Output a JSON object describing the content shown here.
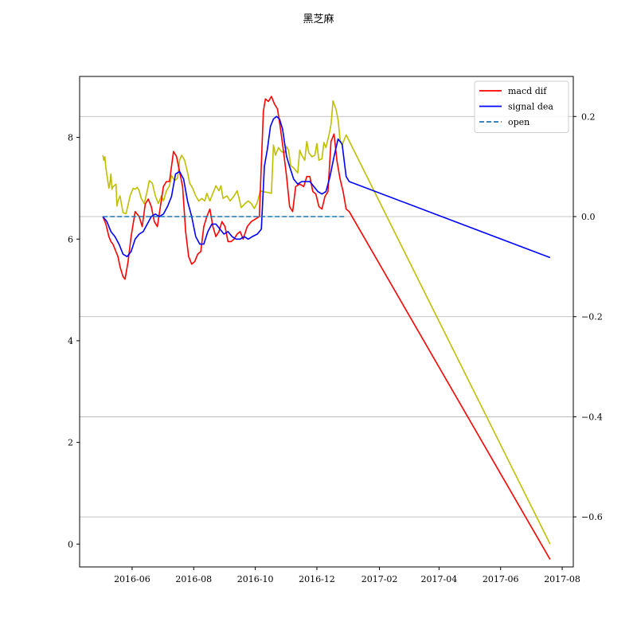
{
  "chart_data": {
    "type": "line",
    "title": "黑芝麻",
    "xlabel": "",
    "ylabel_left": "",
    "ylabel_right": "",
    "x_axis": {
      "type": "date",
      "range": [
        "2016-04-10",
        "2017-08-12"
      ],
      "ticks": [
        "2016-06",
        "2016-08",
        "2016-10",
        "2016-12",
        "2017-02",
        "2017-04",
        "2017-06",
        "2017-08"
      ],
      "tick_dates": [
        "2016-06-01",
        "2016-08-01",
        "2016-10-01",
        "2016-12-01",
        "2017-02-01",
        "2017-04-01",
        "2017-06-01",
        "2017-08-01"
      ]
    },
    "y_left": {
      "range": [
        -0.45,
        9.2
      ],
      "ticks": [
        0,
        2,
        4,
        6,
        8
      ]
    },
    "y_right": {
      "range": [
        -0.7,
        0.28
      ],
      "ticks": [
        0.2,
        0.0,
        -0.2,
        -0.4,
        -0.6
      ],
      "tick_labels": [
        "0.2",
        "0.0",
        "−0.2",
        "−0.4",
        "−0.6"
      ],
      "grid": true
    },
    "legend": {
      "position": "upper right",
      "entries": [
        {
          "label": "macd dif",
          "color": "#ff0000",
          "style": "solid"
        },
        {
          "label": "signal dea",
          "color": "#0000ff",
          "style": "solid"
        },
        {
          "label": "open",
          "color": "#1f77b4",
          "style": "dashed"
        }
      ]
    },
    "series": [
      {
        "name": "",
        "axis": "left",
        "color": "#bfbf00",
        "points": [
          [
            "2016-05-03",
            7.65
          ],
          [
            "2016-05-04",
            7.55
          ],
          [
            "2016-05-05",
            7.62
          ],
          [
            "2016-05-06",
            7.4
          ],
          [
            "2016-05-09",
            7.0
          ],
          [
            "2016-05-10",
            7.1
          ],
          [
            "2016-05-11",
            7.28
          ],
          [
            "2016-05-12",
            6.98
          ],
          [
            "2016-05-13",
            7.03
          ],
          [
            "2016-05-16",
            7.08
          ],
          [
            "2016-05-17",
            6.65
          ],
          [
            "2016-05-18",
            6.75
          ],
          [
            "2016-05-19",
            6.8
          ],
          [
            "2016-05-20",
            6.85
          ],
          [
            "2016-05-23",
            6.52
          ],
          [
            "2016-05-26",
            6.5
          ],
          [
            "2016-05-30",
            6.85
          ],
          [
            "2016-06-02",
            7.0
          ],
          [
            "2016-06-04",
            6.98
          ],
          [
            "2016-06-06",
            7.02
          ],
          [
            "2016-06-08",
            6.95
          ],
          [
            "2016-06-10",
            6.8
          ],
          [
            "2016-06-13",
            6.7
          ],
          [
            "2016-06-16",
            6.95
          ],
          [
            "2016-06-18",
            7.15
          ],
          [
            "2016-06-21",
            7.1
          ],
          [
            "2016-06-24",
            6.85
          ],
          [
            "2016-06-27",
            6.7
          ],
          [
            "2016-06-30",
            6.85
          ],
          [
            "2016-07-02",
            6.75
          ],
          [
            "2016-07-05",
            6.95
          ],
          [
            "2016-07-08",
            7.05
          ],
          [
            "2016-07-10",
            7.25
          ],
          [
            "2016-07-13",
            7.15
          ],
          [
            "2016-07-16",
            7.2
          ],
          [
            "2016-07-18",
            7.55
          ],
          [
            "2016-07-20",
            7.65
          ],
          [
            "2016-07-23",
            7.55
          ],
          [
            "2016-07-26",
            7.3
          ],
          [
            "2016-07-28",
            7.1
          ],
          [
            "2016-07-31",
            7.0
          ],
          [
            "2016-08-03",
            6.85
          ],
          [
            "2016-08-06",
            6.75
          ],
          [
            "2016-08-09",
            6.8
          ],
          [
            "2016-08-12",
            6.75
          ],
          [
            "2016-08-14",
            6.9
          ],
          [
            "2016-08-17",
            6.75
          ],
          [
            "2016-08-20",
            6.9
          ],
          [
            "2016-08-23",
            7.05
          ],
          [
            "2016-08-26",
            6.95
          ],
          [
            "2016-08-28",
            7.05
          ],
          [
            "2016-08-30",
            6.8
          ],
          [
            "2016-09-03",
            6.85
          ],
          [
            "2016-09-06",
            6.75
          ],
          [
            "2016-09-10",
            6.85
          ],
          [
            "2016-09-13",
            6.95
          ],
          [
            "2016-09-15",
            6.8
          ],
          [
            "2016-09-17",
            6.62
          ],
          [
            "2016-09-21",
            6.7
          ],
          [
            "2016-09-24",
            6.75
          ],
          [
            "2016-09-27",
            6.7
          ],
          [
            "2016-09-30",
            6.6
          ],
          [
            "2016-10-03",
            6.72
          ],
          [
            "2016-10-06",
            6.95
          ],
          [
            "2016-10-09",
            6.93
          ],
          [
            "2016-10-13",
            6.92
          ],
          [
            "2016-10-17",
            6.9
          ],
          [
            "2016-10-19",
            7.85
          ],
          [
            "2016-10-21",
            7.65
          ],
          [
            "2016-10-24",
            7.8
          ],
          [
            "2016-10-27",
            7.72
          ],
          [
            "2016-10-30",
            7.7
          ],
          [
            "2016-11-01",
            7.82
          ],
          [
            "2016-11-03",
            7.75
          ],
          [
            "2016-11-05",
            7.45
          ],
          [
            "2016-11-08",
            7.4
          ],
          [
            "2016-11-10",
            7.35
          ],
          [
            "2016-11-12",
            7.3
          ],
          [
            "2016-11-14",
            7.75
          ],
          [
            "2016-11-16",
            7.65
          ],
          [
            "2016-11-19",
            7.55
          ],
          [
            "2016-11-21",
            7.92
          ],
          [
            "2016-11-23",
            7.7
          ],
          [
            "2016-11-26",
            7.62
          ],
          [
            "2016-11-29",
            7.65
          ],
          [
            "2016-12-01",
            7.88
          ],
          [
            "2016-12-03",
            7.55
          ],
          [
            "2016-12-06",
            7.58
          ],
          [
            "2016-12-08",
            7.9
          ],
          [
            "2016-12-10",
            7.8
          ],
          [
            "2016-12-13",
            8.05
          ],
          [
            "2016-12-15",
            8.25
          ],
          [
            "2016-12-17",
            8.72
          ],
          [
            "2016-12-20",
            8.55
          ],
          [
            "2016-12-22",
            8.35
          ],
          [
            "2016-12-24",
            7.95
          ],
          [
            "2016-12-26",
            7.85
          ],
          [
            "2016-12-28",
            7.95
          ],
          [
            "2016-12-30",
            8.05
          ],
          [
            "2017-07-20",
            0.0
          ]
        ]
      },
      {
        "name": "macd dif",
        "axis": "right",
        "color": "#ff0000",
        "points": [
          [
            "2016-05-03",
            0.0
          ],
          [
            "2016-05-06",
            -0.015
          ],
          [
            "2016-05-09",
            -0.04
          ],
          [
            "2016-05-11",
            -0.05
          ],
          [
            "2016-05-13",
            -0.055
          ],
          [
            "2016-05-16",
            -0.07
          ],
          [
            "2016-05-18",
            -0.08
          ],
          [
            "2016-05-20",
            -0.1
          ],
          [
            "2016-05-23",
            -0.12
          ],
          [
            "2016-05-25",
            -0.125
          ],
          [
            "2016-05-28",
            -0.09
          ],
          [
            "2016-05-31",
            -0.04
          ],
          [
            "2016-06-04",
            0.01
          ],
          [
            "2016-06-08",
            0.0
          ],
          [
            "2016-06-11",
            -0.02
          ],
          [
            "2016-06-14",
            0.025
          ],
          [
            "2016-06-17",
            0.035
          ],
          [
            "2016-06-20",
            0.02
          ],
          [
            "2016-06-23",
            -0.01
          ],
          [
            "2016-06-26",
            -0.02
          ],
          [
            "2016-06-29",
            0.02
          ],
          [
            "2016-07-02",
            0.06
          ],
          [
            "2016-07-05",
            0.07
          ],
          [
            "2016-07-08",
            0.07
          ],
          [
            "2016-07-12",
            0.13
          ],
          [
            "2016-07-15",
            0.12
          ],
          [
            "2016-07-18",
            0.09
          ],
          [
            "2016-07-21",
            0.06
          ],
          [
            "2016-07-24",
            -0.03
          ],
          [
            "2016-07-27",
            -0.08
          ],
          [
            "2016-07-30",
            -0.095
          ],
          [
            "2016-08-02",
            -0.09
          ],
          [
            "2016-08-05",
            -0.075
          ],
          [
            "2016-08-08",
            -0.07
          ],
          [
            "2016-08-11",
            -0.02
          ],
          [
            "2016-08-14",
            0.0
          ],
          [
            "2016-08-17",
            0.015
          ],
          [
            "2016-08-20",
            -0.02
          ],
          [
            "2016-08-23",
            -0.04
          ],
          [
            "2016-08-26",
            -0.03
          ],
          [
            "2016-08-29",
            -0.01
          ],
          [
            "2016-09-01",
            -0.02
          ],
          [
            "2016-09-04",
            -0.05
          ],
          [
            "2016-09-07",
            -0.05
          ],
          [
            "2016-09-10",
            -0.045
          ],
          [
            "2016-09-13",
            -0.035
          ],
          [
            "2016-09-16",
            -0.03
          ],
          [
            "2016-09-19",
            -0.045
          ],
          [
            "2016-09-23",
            -0.02
          ],
          [
            "2016-09-27",
            -0.01
          ],
          [
            "2016-10-01",
            -0.005
          ],
          [
            "2016-10-05",
            0.0
          ],
          [
            "2016-10-09",
            0.21
          ],
          [
            "2016-10-11",
            0.235
          ],
          [
            "2016-10-14",
            0.23
          ],
          [
            "2016-10-17",
            0.24
          ],
          [
            "2016-10-20",
            0.225
          ],
          [
            "2016-10-23",
            0.215
          ],
          [
            "2016-10-26",
            0.175
          ],
          [
            "2016-10-29",
            0.13
          ],
          [
            "2016-11-01",
            0.08
          ],
          [
            "2016-11-04",
            0.02
          ],
          [
            "2016-11-07",
            0.01
          ],
          [
            "2016-11-10",
            0.06
          ],
          [
            "2016-11-14",
            0.065
          ],
          [
            "2016-11-18",
            0.06
          ],
          [
            "2016-11-21",
            0.08
          ],
          [
            "2016-11-24",
            0.08
          ],
          [
            "2016-11-27",
            0.05
          ],
          [
            "2016-11-30",
            0.045
          ],
          [
            "2016-12-03",
            0.02
          ],
          [
            "2016-12-06",
            0.015
          ],
          [
            "2016-12-09",
            0.04
          ],
          [
            "2016-12-12",
            0.05
          ],
          [
            "2016-12-15",
            0.15
          ],
          [
            "2016-12-18",
            0.165
          ],
          [
            "2016-12-21",
            0.11
          ],
          [
            "2016-12-24",
            0.075
          ],
          [
            "2016-12-27",
            0.05
          ],
          [
            "2016-12-30",
            0.015
          ],
          [
            "2017-01-02",
            0.01
          ],
          [
            "2017-07-20",
            -0.685
          ]
        ]
      },
      {
        "name": "signal dea",
        "axis": "right",
        "color": "#0000ff",
        "points": [
          [
            "2016-05-03",
            0.0
          ],
          [
            "2016-05-07",
            -0.01
          ],
          [
            "2016-05-11",
            -0.03
          ],
          [
            "2016-05-15",
            -0.04
          ],
          [
            "2016-05-19",
            -0.055
          ],
          [
            "2016-05-23",
            -0.075
          ],
          [
            "2016-05-27",
            -0.08
          ],
          [
            "2016-05-31",
            -0.07
          ],
          [
            "2016-06-04",
            -0.045
          ],
          [
            "2016-06-08",
            -0.035
          ],
          [
            "2016-06-12",
            -0.03
          ],
          [
            "2016-06-16",
            -0.015
          ],
          [
            "2016-06-20",
            0.0
          ],
          [
            "2016-06-24",
            0.005
          ],
          [
            "2016-06-28",
            0.0
          ],
          [
            "2016-07-02",
            0.005
          ],
          [
            "2016-07-06",
            0.02
          ],
          [
            "2016-07-10",
            0.04
          ],
          [
            "2016-07-14",
            0.085
          ],
          [
            "2016-07-18",
            0.09
          ],
          [
            "2016-07-22",
            0.075
          ],
          [
            "2016-07-26",
            0.03
          ],
          [
            "2016-07-30",
            0.0
          ],
          [
            "2016-08-03",
            -0.04
          ],
          [
            "2016-08-07",
            -0.055
          ],
          [
            "2016-08-11",
            -0.055
          ],
          [
            "2016-08-15",
            -0.03
          ],
          [
            "2016-08-19",
            -0.015
          ],
          [
            "2016-08-23",
            -0.015
          ],
          [
            "2016-08-27",
            -0.025
          ],
          [
            "2016-08-31",
            -0.035
          ],
          [
            "2016-09-04",
            -0.03
          ],
          [
            "2016-09-08",
            -0.04
          ],
          [
            "2016-09-12",
            -0.045
          ],
          [
            "2016-09-16",
            -0.045
          ],
          [
            "2016-09-20",
            -0.04
          ],
          [
            "2016-09-24",
            -0.045
          ],
          [
            "2016-09-28",
            -0.04
          ],
          [
            "2016-10-03",
            -0.035
          ],
          [
            "2016-10-07",
            -0.025
          ],
          [
            "2016-10-10",
            0.1
          ],
          [
            "2016-10-13",
            0.135
          ],
          [
            "2016-10-16",
            0.18
          ],
          [
            "2016-10-19",
            0.195
          ],
          [
            "2016-10-22",
            0.2
          ],
          [
            "2016-10-25",
            0.195
          ],
          [
            "2016-10-28",
            0.175
          ],
          [
            "2016-11-01",
            0.12
          ],
          [
            "2016-11-04",
            0.1
          ],
          [
            "2016-11-08",
            0.075
          ],
          [
            "2016-11-12",
            0.065
          ],
          [
            "2016-11-16",
            0.07
          ],
          [
            "2016-11-20",
            0.07
          ],
          [
            "2016-11-24",
            0.07
          ],
          [
            "2016-11-28",
            0.06
          ],
          [
            "2016-12-02",
            0.05
          ],
          [
            "2016-12-06",
            0.045
          ],
          [
            "2016-12-10",
            0.05
          ],
          [
            "2016-12-14",
            0.08
          ],
          [
            "2016-12-18",
            0.12
          ],
          [
            "2016-12-22",
            0.155
          ],
          [
            "2016-12-26",
            0.145
          ],
          [
            "2016-12-30",
            0.08
          ],
          [
            "2017-01-02",
            0.07
          ],
          [
            "2017-07-20",
            -0.082
          ]
        ]
      },
      {
        "name": "open",
        "axis": "right",
        "color": "#1f77b4",
        "dashed": true,
        "points": [
          [
            "2016-05-03",
            0.0
          ],
          [
            "2016-12-30",
            0.0
          ]
        ]
      }
    ]
  }
}
